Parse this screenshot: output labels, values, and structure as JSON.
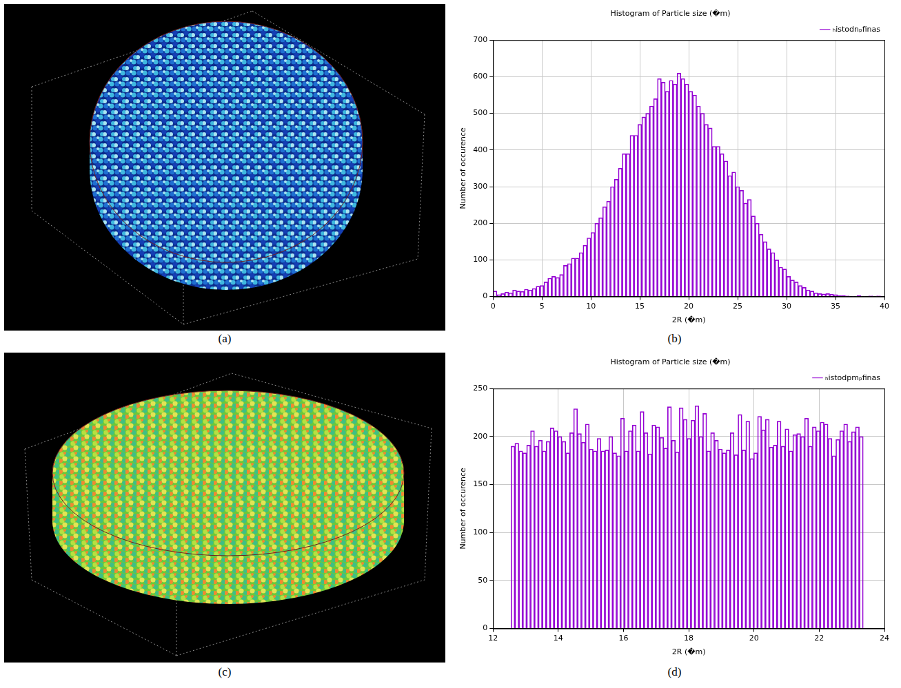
{
  "panel_labels": [
    "(a)",
    "(b)",
    "(c)",
    "(d)"
  ],
  "chart_data": [
    {
      "type": "histogram",
      "title": "Histogram of Particle size (�m)",
      "x_label": "2R (�m)",
      "y_label": "Number of occurence",
      "bins": [
        0,
        0.4,
        0.8,
        1.2,
        1.6,
        2,
        2.4,
        2.8,
        3.2,
        3.6,
        4,
        4.4,
        4.8,
        5.2,
        5.6,
        6,
        6.4,
        6.8,
        7.2,
        7.6,
        8,
        8.4,
        8.8,
        9.2,
        9.6,
        10,
        10.4,
        10.8,
        11.2,
        11.6,
        12,
        12.4,
        12.8,
        13.2,
        13.6,
        14,
        14.4,
        14.8,
        15.2,
        15.6,
        16,
        16.4,
        16.8,
        17.2,
        17.6,
        18,
        18.4,
        18.8,
        19.2,
        19.6,
        20,
        20.4,
        20.8,
        21.2,
        21.6,
        22,
        22.4,
        22.8,
        23.2,
        23.6,
        24,
        24.4,
        24.8,
        25.2,
        25.6,
        26,
        26.4,
        26.8,
        27.2,
        27.6,
        28,
        28.4,
        28.8,
        29.2,
        29.6,
        30,
        30.4,
        30.8,
        31.2,
        31.6,
        32,
        32.4,
        32.8,
        33.2,
        33.6,
        34,
        34.4,
        34.8,
        35.2,
        35.6,
        36,
        36.4,
        36.8,
        37.2,
        37.6,
        38,
        38.4,
        38.8,
        39.2,
        39.6,
        40
      ],
      "series": [
        {
          "name": "ₕistodnₚfinas",
          "color": "#9400d3",
          "values": [
            15,
            5,
            8,
            12,
            10,
            18,
            15,
            14,
            20,
            18,
            22,
            28,
            30,
            40,
            50,
            55,
            52,
            60,
            85,
            90,
            105,
            105,
            120,
            140,
            160,
            175,
            200,
            215,
            245,
            260,
            300,
            320,
            350,
            390,
            390,
            440,
            440,
            470,
            490,
            500,
            520,
            540,
            595,
            585,
            560,
            590,
            580,
            610,
            595,
            580,
            560,
            550,
            520,
            500,
            470,
            460,
            410,
            410,
            390,
            370,
            330,
            340,
            300,
            290,
            255,
            265,
            220,
            200,
            170,
            150,
            130,
            120,
            100,
            80,
            75,
            55,
            45,
            40,
            30,
            25,
            18,
            15,
            10,
            8,
            7,
            8,
            6,
            5,
            3,
            3,
            2,
            1,
            1,
            3,
            1,
            0,
            2,
            1,
            2,
            1
          ]
        }
      ],
      "xlim": [
        0,
        40
      ],
      "xticks": [
        0,
        5,
        10,
        15,
        20,
        25,
        30,
        35,
        40
      ],
      "ylim": [
        0,
        700
      ],
      "yticks": [
        0,
        100,
        200,
        300,
        400,
        500,
        600,
        700
      ],
      "grid": true,
      "legend": "upper right"
    },
    {
      "type": "histogram",
      "title": "Histogram of Particle size (�m)",
      "x_label": "2R (�m)",
      "y_label": "Number of occurence",
      "bins": [
        12.55,
        12.67,
        12.79,
        12.91,
        13.03,
        13.15,
        13.27,
        13.39,
        13.51,
        13.63,
        13.75,
        13.87,
        13.99,
        14.11,
        14.23,
        14.35,
        14.47,
        14.59,
        14.71,
        14.83,
        14.95,
        15.07,
        15.19,
        15.31,
        15.43,
        15.55,
        15.67,
        15.79,
        15.91,
        16.03,
        16.15,
        16.27,
        16.39,
        16.51,
        16.63,
        16.75,
        16.87,
        16.99,
        17.11,
        17.23,
        17.35,
        17.47,
        17.59,
        17.71,
        17.83,
        17.95,
        18.07,
        18.19,
        18.31,
        18.43,
        18.55,
        18.67,
        18.79,
        18.91,
        19.03,
        19.15,
        19.27,
        19.39,
        19.51,
        19.63,
        19.75,
        19.87,
        19.99,
        20.11,
        20.23,
        20.35,
        20.47,
        20.59,
        20.71,
        20.83,
        20.95,
        21.07,
        21.19,
        21.31,
        21.43,
        21.55,
        21.67,
        21.79,
        21.91,
        22.03,
        22.15,
        22.27,
        22.39,
        22.51,
        22.63,
        22.75,
        22.87,
        22.99,
        23.11,
        23.23,
        23.35
      ],
      "series": [
        {
          "name": "ₕistodpmₚfinas",
          "color": "#9400d3",
          "values": [
            190,
            193,
            185,
            183,
            191,
            206,
            190,
            196,
            185,
            195,
            209,
            206,
            200,
            195,
            183,
            204,
            229,
            203,
            194,
            213,
            187,
            185,
            198,
            185,
            186,
            200,
            183,
            180,
            219,
            185,
            206,
            212,
            185,
            226,
            204,
            182,
            212,
            210,
            199,
            188,
            231,
            196,
            184,
            230,
            218,
            198,
            217,
            232,
            200,
            224,
            185,
            204,
            196,
            187,
            183,
            186,
            204,
            181,
            223,
            186,
            216,
            177,
            183,
            221,
            207,
            218,
            189,
            191,
            216,
            190,
            208,
            185,
            202,
            203,
            200,
            219,
            190,
            210,
            206,
            215,
            213,
            198,
            180,
            197,
            206,
            213,
            195,
            205,
            210,
            200
          ]
        }
      ],
      "xlim": [
        12,
        24
      ],
      "xticks": [
        12,
        14,
        16,
        18,
        20,
        22,
        24
      ],
      "ylim": [
        0,
        250
      ],
      "yticks": [
        0,
        50,
        100,
        150,
        200,
        250
      ],
      "grid": true,
      "legend": "upper right"
    }
  ]
}
